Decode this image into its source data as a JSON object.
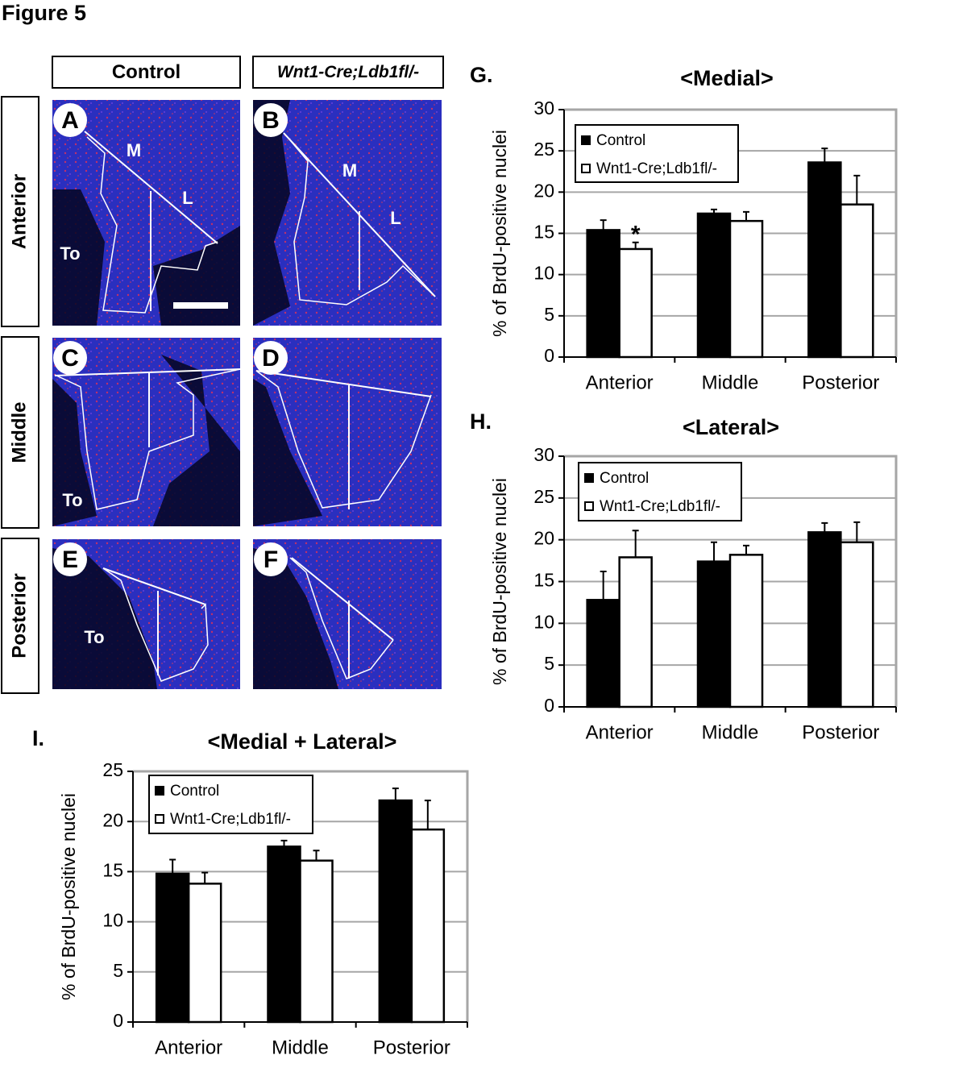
{
  "figure_title": "Figure 5",
  "column_headers": [
    "Control",
    "Wnt1-Cre;Ldb1fl/-"
  ],
  "row_headers": [
    "Anterior",
    "Middle",
    "Posterior"
  ],
  "image_panels": [
    {
      "letter": "A",
      "labels": [
        "M",
        "L",
        "To"
      ]
    },
    {
      "letter": "B",
      "labels": [
        "M",
        "L"
      ]
    },
    {
      "letter": "C",
      "labels": [
        "To"
      ]
    },
    {
      "letter": "D",
      "labels": []
    },
    {
      "letter": "E",
      "labels": [
        "To"
      ]
    },
    {
      "letter": "F",
      "labels": []
    }
  ],
  "chart_data": [
    {
      "type": "bar",
      "panel_label": "G.",
      "title": "<Medial>",
      "y_label": "% of BrdU-positive nuclei",
      "categories": [
        "Anterior",
        "Middle",
        "Posterior"
      ],
      "series": [
        {
          "name": "Control",
          "color": "#000000",
          "values": [
            15.4,
            17.4,
            23.6
          ],
          "error": [
            1.2,
            0.5,
            1.7
          ]
        },
        {
          "name": "Wnt1-Cre;Ldb1fl/-",
          "color": "#ffffff",
          "values": [
            13.1,
            16.5,
            18.5
          ],
          "error": [
            0.8,
            1.1,
            3.5
          ]
        }
      ],
      "annotation": "*",
      "ylim": [
        0,
        30
      ],
      "yticks": [
        0,
        5,
        10,
        15,
        20,
        25,
        30
      ],
      "grid": true
    },
    {
      "type": "bar",
      "panel_label": "H.",
      "title": "<Lateral>",
      "y_label": "% of BrdU-positive nuclei",
      "categories": [
        "Anterior",
        "Middle",
        "Posterior"
      ],
      "series": [
        {
          "name": "Control",
          "color": "#000000",
          "values": [
            12.8,
            17.4,
            20.9
          ],
          "error": [
            3.4,
            2.3,
            1.1
          ]
        },
        {
          "name": "Wnt1-Cre;Ldb1fl/-",
          "color": "#ffffff",
          "values": [
            17.9,
            18.2,
            19.7
          ],
          "error": [
            3.2,
            1.1,
            2.4
          ]
        }
      ],
      "ylim": [
        0,
        30
      ],
      "yticks": [
        0,
        5,
        10,
        15,
        20,
        25,
        30
      ],
      "grid": true
    },
    {
      "type": "bar",
      "panel_label": "I.",
      "title": "<Medial + Lateral>",
      "y_label": "% of BrdU-positive nuclei",
      "categories": [
        "Anterior",
        "Middle",
        "Posterior"
      ],
      "series": [
        {
          "name": "Control",
          "color": "#000000",
          "values": [
            14.8,
            17.5,
            22.1
          ],
          "error": [
            1.4,
            0.6,
            1.2
          ]
        },
        {
          "name": "Wnt1-Cre;Ldb1fl/-",
          "color": "#ffffff",
          "values": [
            13.8,
            16.1,
            19.2
          ],
          "error": [
            1.1,
            1.0,
            2.9
          ]
        }
      ],
      "ylim": [
        0,
        25
      ],
      "yticks": [
        0,
        5,
        10,
        15,
        20,
        25
      ],
      "grid": true
    }
  ]
}
